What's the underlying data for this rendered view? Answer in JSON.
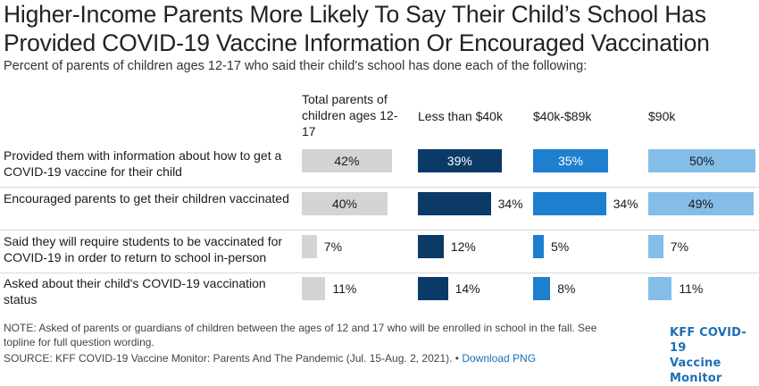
{
  "header": {
    "title": "Higher-Income Parents More Likely To Say Their Child’s School Has Provided COVID-19 Vaccine Information Or Encouraged Vaccination",
    "subtitle": "Percent of parents of children ages 12-17 who said their child's school has done each of the following:"
  },
  "chart_data": {
    "type": "bar",
    "title": "Higher-Income Parents More Likely To Say Their Child’s School Has Provided COVID-19 Vaccine Information Or Encouraged Vaccination",
    "subtitle": "Percent of parents of children ages 12-17 who said their child's school has done each of the following:",
    "categories": [
      "Provided them with information about how to get a COVID-19 vaccine for their child",
      "Encouraged parents to get their children vaccinated",
      "Said they will require students to be vaccinated for COVID-19 in order to return to school in-person",
      "Asked about their child's COVID-19 vaccination status"
    ],
    "series": [
      {
        "name": "Total parents of children ages 12-17",
        "values": [
          42,
          40,
          7,
          11
        ],
        "labels": [
          "42%",
          "40%",
          "7%",
          "11%"
        ],
        "color": "#d4d4d4"
      },
      {
        "name": "Less than $40k",
        "values": [
          39,
          34,
          12,
          14
        ],
        "labels": [
          "39%",
          "34%",
          "12%",
          "14%"
        ],
        "color": "#0b3a66"
      },
      {
        "name": "$40k-$89k",
        "values": [
          35,
          34,
          5,
          8
        ],
        "labels": [
          "35%",
          "34%",
          "5%",
          "8%"
        ],
        "color": "#1f7fcf"
      },
      {
        "name": "$90k",
        "values": [
          50,
          49,
          7,
          11
        ],
        "labels": [
          "50%",
          "49%",
          "7%",
          "11%"
        ],
        "color": "#84bde8"
      }
    ],
    "unit": "%",
    "xlim": [
      0,
      50
    ],
    "grid": false,
    "legend": "none"
  },
  "footer": {
    "note": "NOTE: Asked of parents or guardians of children between the ages of 12 and 17 who will be enrolled in school in the fall. See topline for full question wording.",
    "source": "SOURCE: KFF COVID-19 Vaccine Monitor: Parents And The Pandemic (Jul. 15-Aug. 2, 2021). •",
    "download": "Download PNG",
    "logo_line1": "KFF COVID-19",
    "logo_line2": "Vaccine Monitor"
  }
}
